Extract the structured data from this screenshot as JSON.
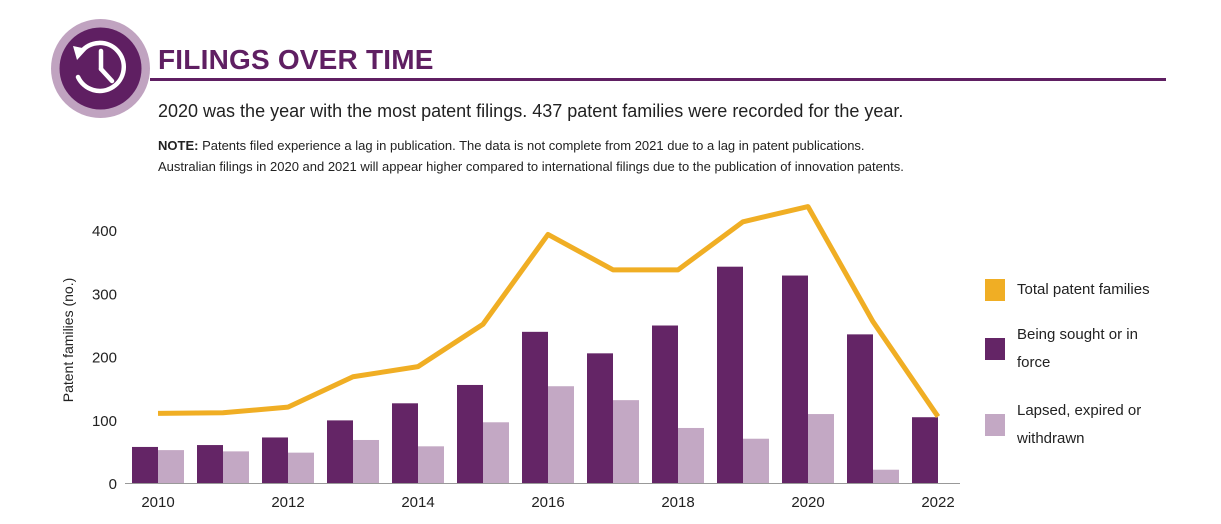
{
  "header": {
    "title": "FILINGS OVER TIME",
    "subtitle": "2020 was the year with the most patent filings. 437 patent families were recorded for the year.",
    "note_label": "NOTE:",
    "note_line1": " Patents filed experience a lag in publication. The data is not complete from 2021 due to a lag in patent publications.",
    "note_line2": "Australian filings in 2020 and 2021 will appear higher compared to international filings due to the publication of innovation patents."
  },
  "icon": {
    "name": "clock-history-icon"
  },
  "colors": {
    "accent": "#5f1f62",
    "icon_ring": "#c0a3c0",
    "line": "#f0ae24",
    "sought": "#642566",
    "lapsed": "#c3a8c4"
  },
  "chart_data": {
    "type": "bar",
    "title": "",
    "xlabel": "",
    "ylabel": "Patent families (no.)",
    "ylim": [
      0,
      400
    ],
    "yticks": [
      0,
      100,
      200,
      300,
      400
    ],
    "x": [
      2010,
      2011,
      2012,
      2013,
      2014,
      2015,
      2016,
      2017,
      2018,
      2019,
      2020,
      2021,
      2022
    ],
    "xtick_labels": [
      "2010",
      "2012",
      "2014",
      "2016",
      "2018",
      "2020",
      "2022"
    ],
    "series": [
      {
        "name": "Total patent families",
        "kind": "line",
        "color": "#f0ae24",
        "values": [
          110,
          111,
          120,
          168,
          184,
          251,
          393,
          337,
          337,
          413,
          437,
          255,
          105
        ]
      },
      {
        "name": "Being sought or in force",
        "kind": "bar",
        "color": "#642566",
        "values": [
          57,
          60,
          72,
          99,
          126,
          155,
          239,
          205,
          249,
          342,
          328,
          235,
          104
        ]
      },
      {
        "name": "Lapsed, expired or withdrawn",
        "kind": "bar",
        "color": "#c3a8c4",
        "values": [
          52,
          50,
          48,
          68,
          58,
          96,
          153,
          131,
          87,
          70,
          109,
          21,
          0
        ]
      }
    ],
    "grid": false,
    "legend_position": "right"
  },
  "legend": [
    {
      "line1": "Total patent families",
      "line2": ""
    },
    {
      "line1": "Being sought or in",
      "line2": "force"
    },
    {
      "line1": "Lapsed, expired or",
      "line2": "withdrawn"
    }
  ]
}
